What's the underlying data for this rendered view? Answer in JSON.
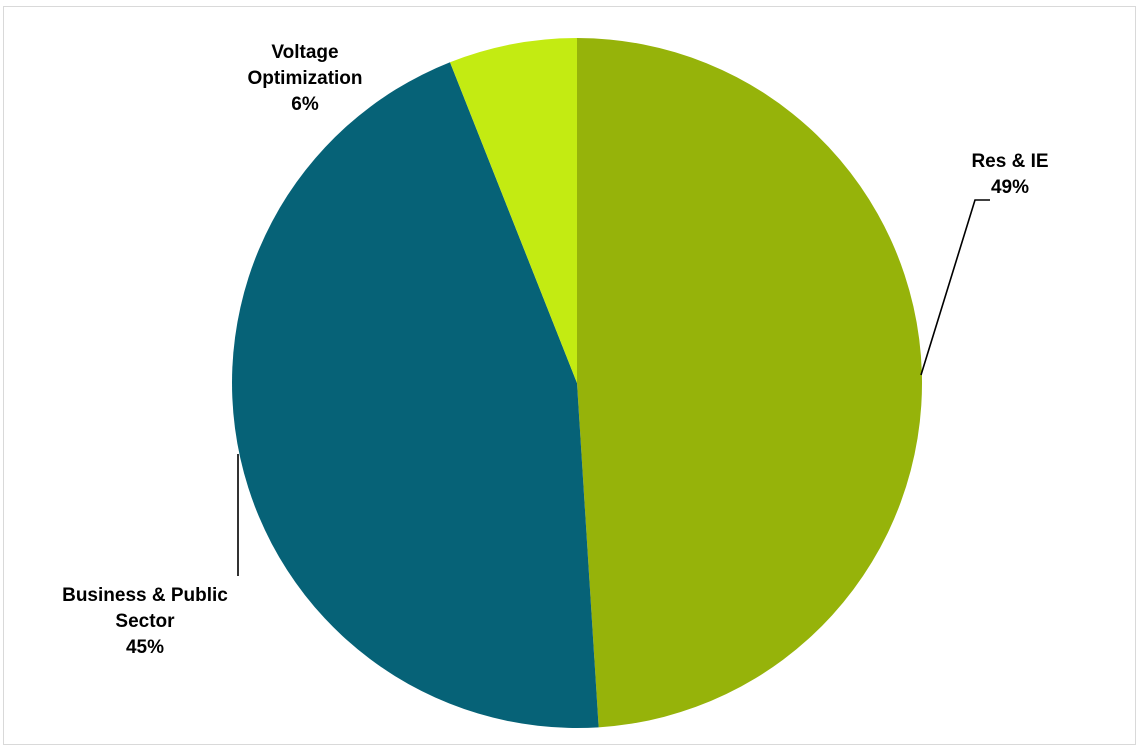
{
  "chart_data": {
    "type": "pie",
    "title": "",
    "legend": "none",
    "slices": [
      {
        "name": "Res & IE",
        "value": 49,
        "value_label": "49%",
        "color": "#96b30a",
        "label_lines": [
          "Res & IE"
        ]
      },
      {
        "name": "Business & Public Sector",
        "value": 45,
        "value_label": "45%",
        "color": "#066277",
        "label_lines": [
          "Business & Public",
          "Sector"
        ]
      },
      {
        "name": "Voltage Optimization",
        "value": 6,
        "value_label": "6%",
        "color": "#c3eb12",
        "label_lines": [
          "Voltage",
          "Optimization"
        ]
      }
    ]
  }
}
